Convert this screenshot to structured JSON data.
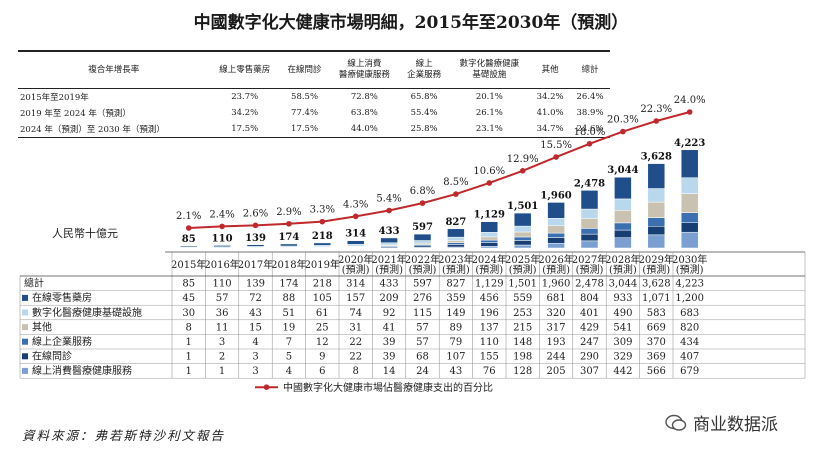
{
  "title": "中國數字化大健康市場明細，2015年至2030年（預測）",
  "cagr_table": {
    "headers": [
      "複合年增長率",
      "線上零售藥房",
      "在線問診",
      "線上消費\n醫療健康服務",
      "線上\n企業服務",
      "數字化醫療健康\n基礎設施",
      "其他",
      "總計"
    ],
    "rows": [
      {
        "label": "2015年至2019年",
        "values": [
          "23.7%",
          "58.5%",
          "72.8%",
          "65.8%",
          "20.1%",
          "34.2%",
          "26.4%"
        ]
      },
      {
        "label": "2019 年至 2024 年（預測）",
        "values": [
          "34.2%",
          "77.4%",
          "63.8%",
          "55.4%",
          "26.1%",
          "41.0%",
          "38.9%"
        ]
      },
      {
        "label": "2024 年（預測）至 2030 年（預測）",
        "values": [
          "17.5%",
          "17.5%",
          "44.0%",
          "25.8%",
          "23.1%",
          "34.7%",
          "24.6%"
        ]
      }
    ]
  },
  "colors": {
    "retail_pharmacy": "#1f4e8a",
    "digital_infra": "#b9d8ee",
    "other": "#c9c2b0",
    "enterprise": "#3b6fb0",
    "online_consult": "#173f73",
    "consumer": "#7a9fd0",
    "line": "#c0282c",
    "row_label_bg": "#ffffff"
  },
  "chart_data": {
    "type": "stacked-bar-with-line",
    "y_unit_label": "人民幣十億元",
    "categories": [
      "2015年",
      "2016年",
      "2017年",
      "2018年",
      "2019年",
      "2020年\n(預測)",
      "2021年\n(預測)",
      "2022年\n(預測)",
      "2023年\n(預測)",
      "2024年\n(預測)",
      "2025年\n(預測)",
      "2026年\n(預測)",
      "2027年\n(預測)",
      "2028年\n(預測)",
      "2029年\n(預測)",
      "2030年\n(預測)"
    ],
    "totals": [
      85,
      110,
      139,
      174,
      218,
      314,
      433,
      597,
      827,
      1129,
      1501,
      1960,
      2478,
      3044,
      3628,
      4223
    ],
    "total_labels": [
      "85",
      "110",
      "139",
      "174",
      "218",
      "314",
      "433",
      "597",
      "827",
      "1,129",
      "1,501",
      "1,960",
      "2,478",
      "3,044",
      "3,628",
      "4,223"
    ],
    "series": [
      {
        "key": "retail_pharmacy",
        "name": "在線零售藥房",
        "values": [
          45,
          57,
          72,
          88,
          105,
          157,
          209,
          276,
          359,
          456,
          559,
          681,
          804,
          933,
          1071,
          1200
        ],
        "labels": [
          "45",
          "57",
          "72",
          "88",
          "105",
          "157",
          "209",
          "276",
          "359",
          "456",
          "559",
          "681",
          "804",
          "933",
          "1,071",
          "1,200"
        ]
      },
      {
        "key": "digital_infra",
        "name": "數字化醫療健康基礎設施",
        "values": [
          30,
          36,
          43,
          51,
          61,
          74,
          92,
          115,
          149,
          196,
          253,
          320,
          401,
          490,
          583,
          683
        ],
        "labels": [
          "30",
          "36",
          "43",
          "51",
          "61",
          "74",
          "92",
          "115",
          "149",
          "196",
          "253",
          "320",
          "401",
          "490",
          "583",
          "683"
        ]
      },
      {
        "key": "other",
        "name": "其他",
        "values": [
          8,
          11,
          15,
          19,
          25,
          31,
          41,
          57,
          89,
          137,
          215,
          317,
          429,
          541,
          669,
          820
        ],
        "labels": [
          "8",
          "11",
          "15",
          "19",
          "25",
          "31",
          "41",
          "57",
          "89",
          "137",
          "215",
          "317",
          "429",
          "541",
          "669",
          "820"
        ]
      },
      {
        "key": "enterprise",
        "name": "線上企業服務",
        "values": [
          1,
          3,
          4,
          7,
          12,
          22,
          39,
          57,
          79,
          110,
          148,
          193,
          247,
          309,
          370,
          434
        ],
        "labels": [
          "1",
          "3",
          "4",
          "7",
          "12",
          "22",
          "39",
          "57",
          "79",
          "110",
          "148",
          "193",
          "247",
          "309",
          "370",
          "434"
        ]
      },
      {
        "key": "online_consult",
        "name": "在線問診",
        "values": [
          1,
          2,
          3,
          5,
          9,
          22,
          39,
          68,
          107,
          155,
          198,
          244,
          290,
          329,
          369,
          407
        ],
        "labels": [
          "1",
          "2",
          "3",
          "5",
          "9",
          "22",
          "39",
          "68",
          "107",
          "155",
          "198",
          "244",
          "290",
          "329",
          "369",
          "407"
        ]
      },
      {
        "key": "consumer",
        "name": "線上消費醫療健康服務",
        "values": [
          1,
          1,
          3,
          4,
          6,
          8,
          14,
          24,
          43,
          76,
          128,
          205,
          307,
          442,
          566,
          679
        ],
        "labels": [
          "1",
          "1",
          "3",
          "4",
          "6",
          "8",
          "14",
          "24",
          "43",
          "76",
          "128",
          "205",
          "307",
          "442",
          "566",
          "679"
        ]
      }
    ],
    "table_total_label": "總計",
    "line": {
      "name": "中國數字化大健康市場佔醫療健康支出的百分比",
      "values": [
        2.1,
        2.4,
        2.6,
        2.9,
        3.3,
        4.3,
        5.4,
        6.8,
        8.5,
        10.6,
        12.9,
        15.5,
        18.0,
        20.3,
        22.3,
        24.0
      ],
      "labels": [
        "2.1%",
        "2.4%",
        "2.6%",
        "2.9%",
        "3.3%",
        "4.3%",
        "5.4%",
        "6.8%",
        "8.5%",
        "10.6%",
        "12.9%",
        "15.5%",
        "18.0%",
        "20.3%",
        "22.3%",
        "24.0%"
      ]
    },
    "ylim": [
      0,
      4300
    ],
    "line_ylim": [
      0,
      25
    ]
  },
  "source": "資料來源：弗若斯特沙利文報告",
  "watermark": "商业数据派"
}
